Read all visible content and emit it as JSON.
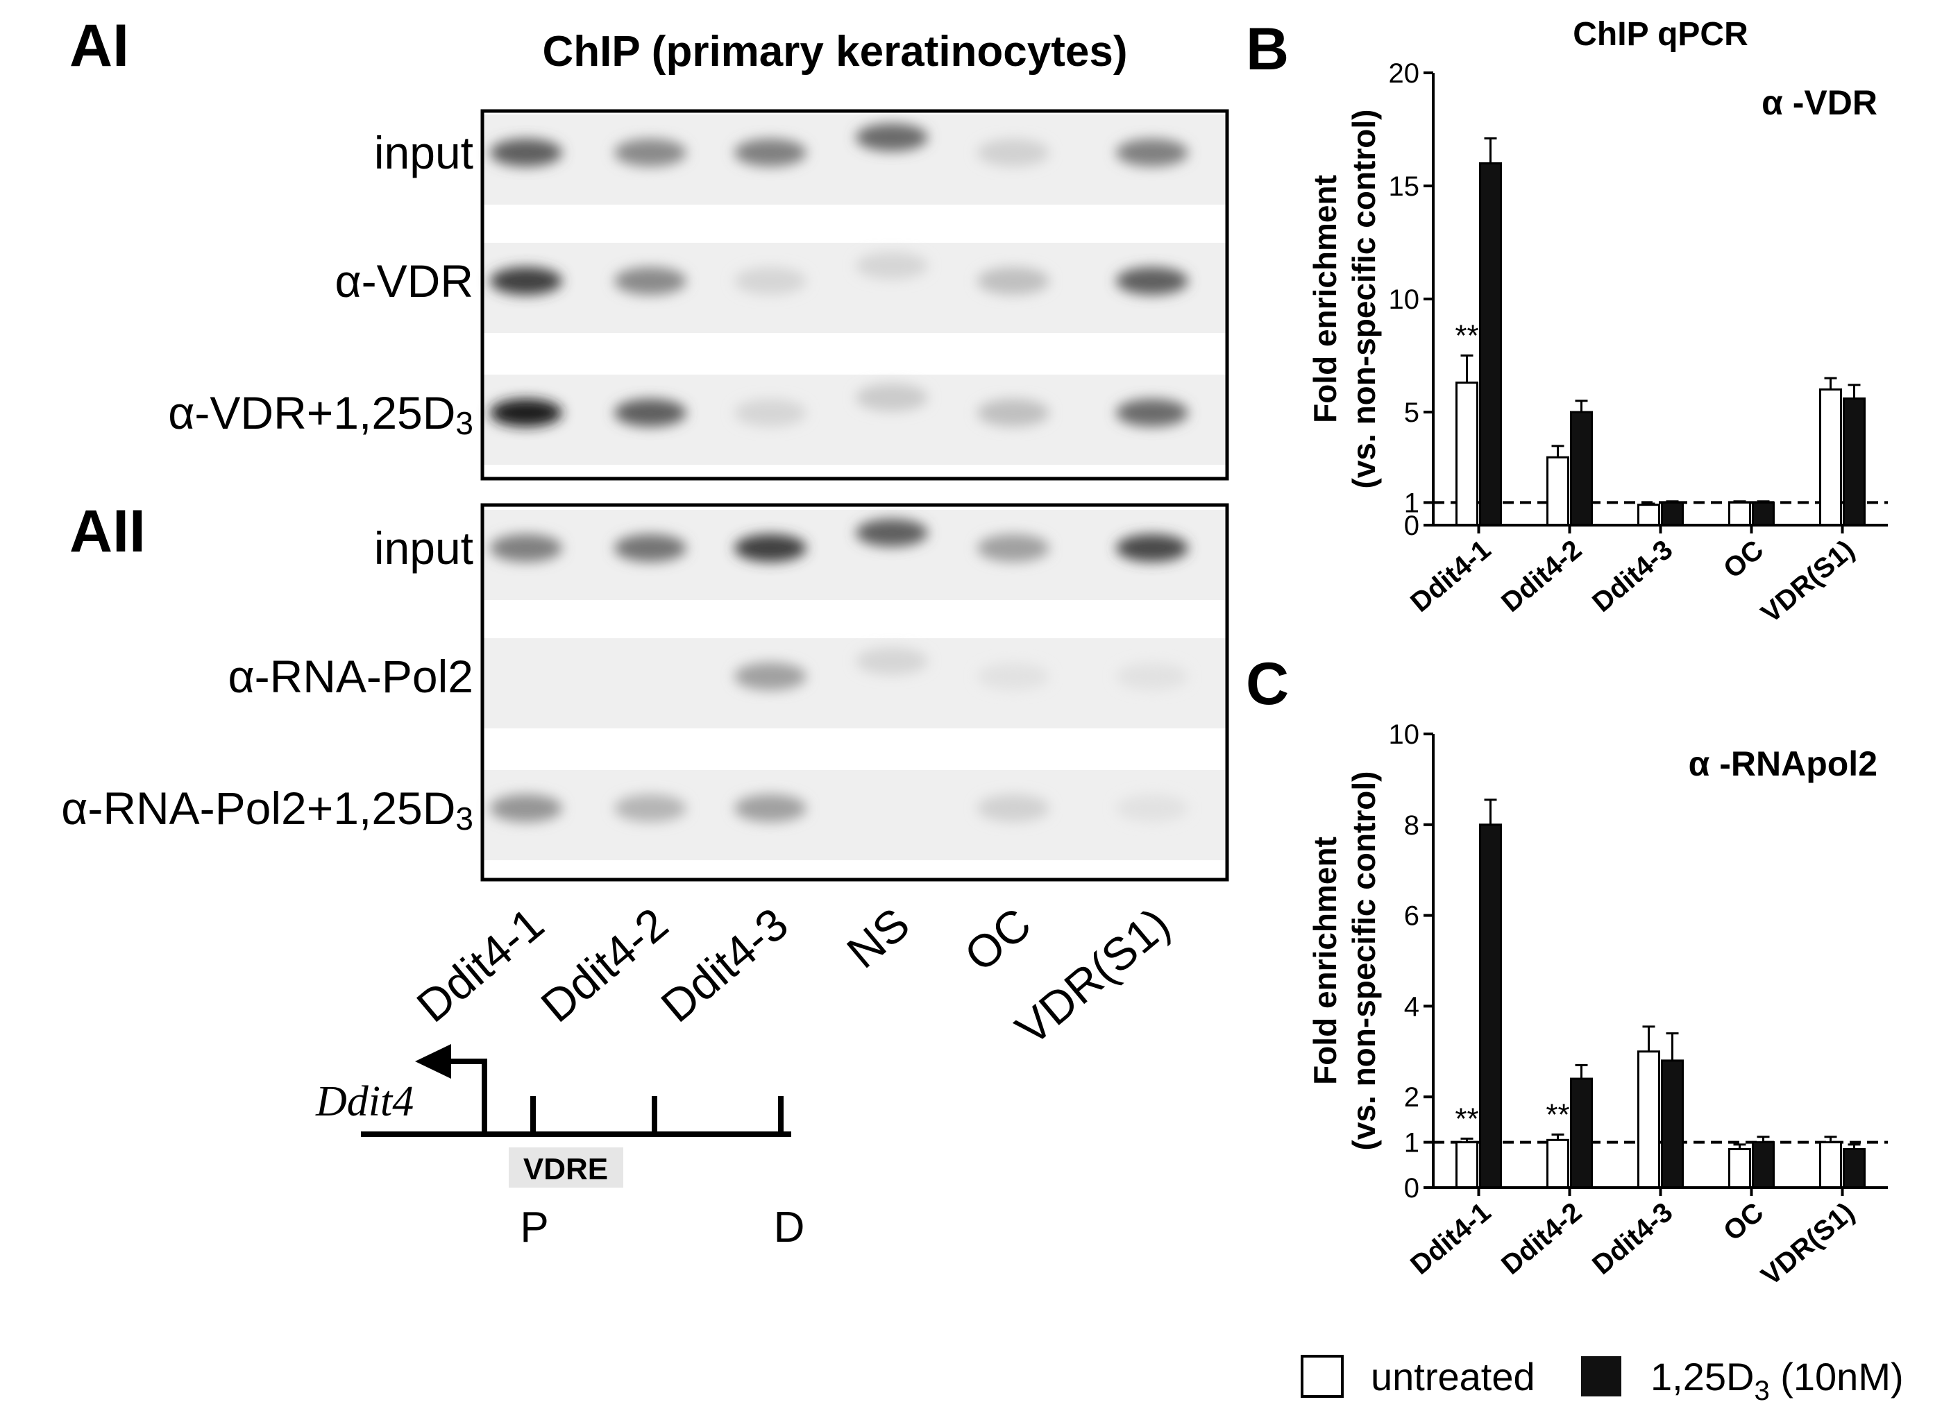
{
  "panels": {
    "AI": "AI",
    "AII": "AII",
    "B": "B",
    "C": "C"
  },
  "blot": {
    "title": "ChIP (primary keratinocytes)",
    "lanes": [
      "Ddit4-1",
      "Ddit4-2",
      "Ddit4-3",
      "NS",
      "OC",
      "VDR(S1)"
    ],
    "AI_rows": [
      {
        "label_main": "input",
        "label_sub": "",
        "band_intensity": [
          0.65,
          0.45,
          0.5,
          0.6,
          0.12,
          0.5
        ]
      },
      {
        "label_main": "α-VDR",
        "label_sub": "",
        "band_intensity": [
          0.8,
          0.45,
          0.1,
          0.1,
          0.2,
          0.65
        ]
      },
      {
        "label_main": "α-VDR+1,25D",
        "label_sub": "3",
        "band_intensity": [
          0.95,
          0.65,
          0.1,
          0.15,
          0.2,
          0.6
        ]
      }
    ],
    "AII_rows": [
      {
        "label_main": "input",
        "label_sub": "",
        "band_intensity": [
          0.5,
          0.55,
          0.8,
          0.65,
          0.35,
          0.75
        ]
      },
      {
        "label_main": "α-RNA-Pol2",
        "label_sub": "",
        "band_intensity": [
          0.0,
          0.0,
          0.35,
          0.1,
          0.04,
          0.04
        ]
      },
      {
        "label_main": "α-RNA-Pol2+1,25D",
        "label_sub": "3",
        "band_intensity": [
          0.4,
          0.25,
          0.35,
          0.0,
          0.12,
          0.04
        ]
      }
    ]
  },
  "schematic": {
    "gene": "Ddit4",
    "vdre": "VDRE",
    "p_label": "P",
    "d_label": "D"
  },
  "legend": {
    "untreated": "untreated",
    "treated_main": "1,25D",
    "treated_sub": "3",
    "treated_rest": " (10nM)",
    "colors": {
      "untreated": "#ffffff",
      "treated": "#111111"
    }
  },
  "chart_data": [
    {
      "type": "bar",
      "title": "ChIP qPCR",
      "annotation": "α -VDR",
      "ylabel_line1": "Fold enrichment",
      "ylabel_line2": "(vs. non-specific control)",
      "categories": [
        "Ddit4-1",
        "Ddit4-2",
        "Ddit4-3",
        "OC",
        "VDR(S1)"
      ],
      "ylim": [
        0,
        20
      ],
      "yticks": [
        0,
        1,
        5,
        10,
        15,
        20
      ],
      "reference_line": 1,
      "series": [
        {
          "values": [
            6.3,
            3.0,
            0.9,
            1.0,
            6.0
          ],
          "errors": [
            1.2,
            0.5,
            0.05,
            0.05,
            0.5
          ]
        },
        {
          "values": [
            16.0,
            5.0,
            1.0,
            1.0,
            5.6
          ],
          "errors": [
            1.1,
            0.5,
            0.05,
            0.05,
            0.6
          ]
        }
      ],
      "significance": [
        {
          "category": "Ddit4-1",
          "label": "**"
        }
      ]
    },
    {
      "type": "bar",
      "title": "",
      "annotation": "α -RNApol2",
      "ylabel_line1": "Fold enrichment",
      "ylabel_line2": "(vs. non-specific control)",
      "categories": [
        "Ddit4-1",
        "Ddit4-2",
        "Ddit4-3",
        "OC",
        "VDR(S1)"
      ],
      "ylim": [
        0,
        10
      ],
      "yticks": [
        0,
        1,
        2,
        4,
        6,
        8,
        10
      ],
      "reference_line": 1,
      "series": [
        {
          "values": [
            1.0,
            1.05,
            3.0,
            0.85,
            1.0
          ],
          "errors": [
            0.08,
            0.12,
            0.55,
            0.1,
            0.12
          ]
        },
        {
          "values": [
            8.0,
            2.4,
            2.8,
            1.0,
            0.85
          ],
          "errors": [
            0.55,
            0.3,
            0.6,
            0.12,
            0.1
          ]
        }
      ],
      "significance": [
        {
          "category": "Ddit4-1",
          "label": "**"
        },
        {
          "category": "Ddit4-2",
          "label": "**"
        }
      ]
    }
  ]
}
